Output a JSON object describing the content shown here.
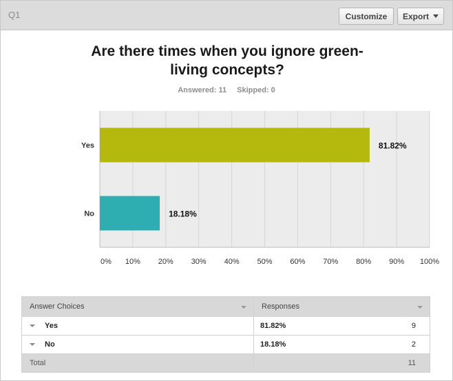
{
  "header": {
    "question_label": "Q1",
    "customize_label": "Customize",
    "export_label": "Export"
  },
  "question": {
    "title_line1": "Are there times when you ignore green-",
    "title_line2": "living concepts?",
    "answered": "Answered: 11",
    "skipped": "Skipped: 0"
  },
  "chart_data": {
    "type": "bar",
    "orientation": "horizontal",
    "categories": [
      "Yes",
      "No"
    ],
    "values": [
      81.82,
      18.18
    ],
    "value_labels": [
      "81.82%",
      "18.18%"
    ],
    "colors": [
      "#b5b90e",
      "#2eaeb1"
    ],
    "xlim": [
      0,
      100
    ],
    "xticks": [
      "0%",
      "10%",
      "20%",
      "30%",
      "40%",
      "50%",
      "60%",
      "70%",
      "80%",
      "90%",
      "100%"
    ],
    "grid": true,
    "title": "Are there times when you ignore green-living concepts?"
  },
  "table": {
    "headers": [
      "Answer Choices",
      "Responses"
    ],
    "rows": [
      {
        "choice": "Yes",
        "percent": "81.82%",
        "count": "9"
      },
      {
        "choice": "No",
        "percent": "18.18%",
        "count": "2"
      }
    ],
    "total_label": "Total",
    "total_count": "11"
  }
}
